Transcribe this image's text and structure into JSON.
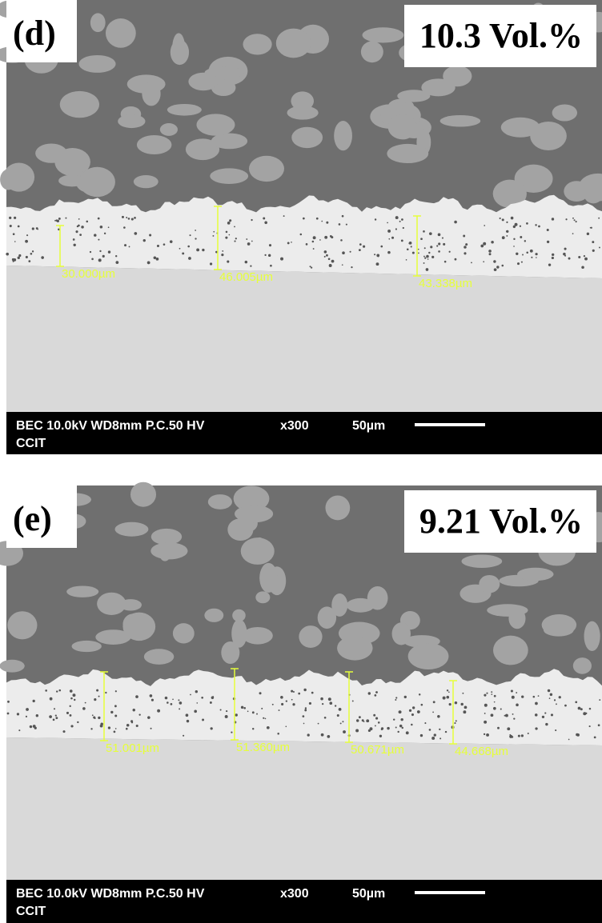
{
  "panels": [
    {
      "label": "(d)",
      "fraction": "10.3 Vol.%",
      "measurements": [
        "30.000µm",
        "46.005µm",
        "43.338µm"
      ],
      "info": {
        "settings": "BEC 10.0kV WD8mm P.C.50 HV",
        "magnification": "x300",
        "scale": "50µm",
        "footer": "CCIT"
      }
    },
    {
      "label": "(e)",
      "fraction": "9.21 Vol.%",
      "measurements": [
        "51.001µm",
        "51.360µm",
        "50.671µm",
        "44.668µm"
      ],
      "info": {
        "settings": "BEC 10.0kV WD8mm P.C.50 HV",
        "magnification": "x300",
        "scale": "50µm",
        "footer": "CCIT"
      }
    }
  ]
}
